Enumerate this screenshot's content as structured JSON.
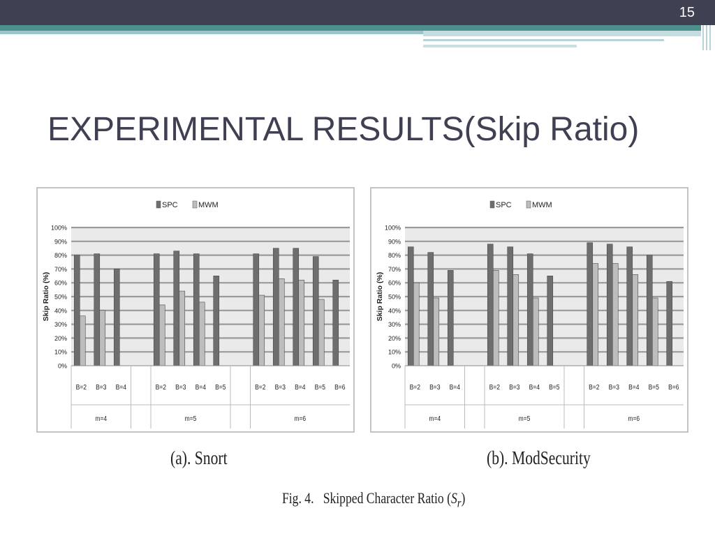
{
  "slide": {
    "number": "15",
    "title": "EXPERIMENTAL RESULTS(Skip Ratio)"
  },
  "captions": {
    "a": "(a). Snort",
    "b": "(b). ModSecurity",
    "figure_prefix": "Fig. 4.",
    "figure_text": "Skipped Character Ratio (",
    "figure_symbol": "S",
    "figure_sub": "r",
    "figure_close": ")"
  },
  "colors": {
    "spc": "#6e6e6e",
    "mwm": "#bdbdbd",
    "plot_bg": "#eaeaea",
    "header_bar": "#3f4052",
    "accent": "#4d8f8c"
  },
  "chart_data": [
    {
      "type": "bar",
      "id": "a",
      "ylabel": "Skip Ratio (%)",
      "ylim": [
        0,
        100
      ],
      "yticks": [
        "0%",
        "10%",
        "20%",
        "30%",
        "40%",
        "50%",
        "60%",
        "70%",
        "80%",
        "90%",
        "100%"
      ],
      "grid": true,
      "legend_position": "top-center",
      "groups": [
        {
          "label": "m=4",
          "categories": [
            "B=2",
            "B=3",
            "B=4"
          ]
        },
        {
          "label": "m=5",
          "categories": [
            "B=2",
            "B=3",
            "B=4",
            "B=5"
          ]
        },
        {
          "label": "m=6",
          "categories": [
            "B=2",
            "B=3",
            "B=4",
            "B=5",
            "B=6"
          ]
        }
      ],
      "series": [
        {
          "name": "SPC",
          "values": [
            [
              80,
              81,
              70
            ],
            [
              81,
              83,
              81,
              65
            ],
            [
              81,
              85,
              85,
              79,
              62
            ]
          ]
        },
        {
          "name": "MWM",
          "values": [
            [
              36,
              40,
              null
            ],
            [
              44,
              54,
              46,
              null
            ],
            [
              51,
              63,
              62,
              48,
              null
            ]
          ]
        }
      ]
    },
    {
      "type": "bar",
      "id": "b",
      "ylabel": "Skip Ratio (%)",
      "ylim": [
        0,
        100
      ],
      "yticks": [
        "0%",
        "10%",
        "20%",
        "30%",
        "40%",
        "50%",
        "60%",
        "70%",
        "80%",
        "90%",
        "100%"
      ],
      "grid": true,
      "legend_position": "top-center",
      "groups": [
        {
          "label": "m=4",
          "categories": [
            "B=2",
            "B=3",
            "B=4"
          ]
        },
        {
          "label": "m=5",
          "categories": [
            "B=2",
            "B=3",
            "B=4",
            "B=5"
          ]
        },
        {
          "label": "m=6",
          "categories": [
            "B=2",
            "B=3",
            "B=4",
            "B=5",
            "B=6"
          ]
        }
      ],
      "series": [
        {
          "name": "SPC",
          "values": [
            [
              86,
              82,
              69
            ],
            [
              88,
              86,
              81,
              65
            ],
            [
              89,
              88,
              86,
              80,
              61
            ]
          ]
        },
        {
          "name": "MWM",
          "values": [
            [
              60,
              49,
              null
            ],
            [
              69,
              66,
              49,
              null
            ],
            [
              74,
              74,
              66,
              49,
              null
            ]
          ]
        }
      ]
    }
  ]
}
